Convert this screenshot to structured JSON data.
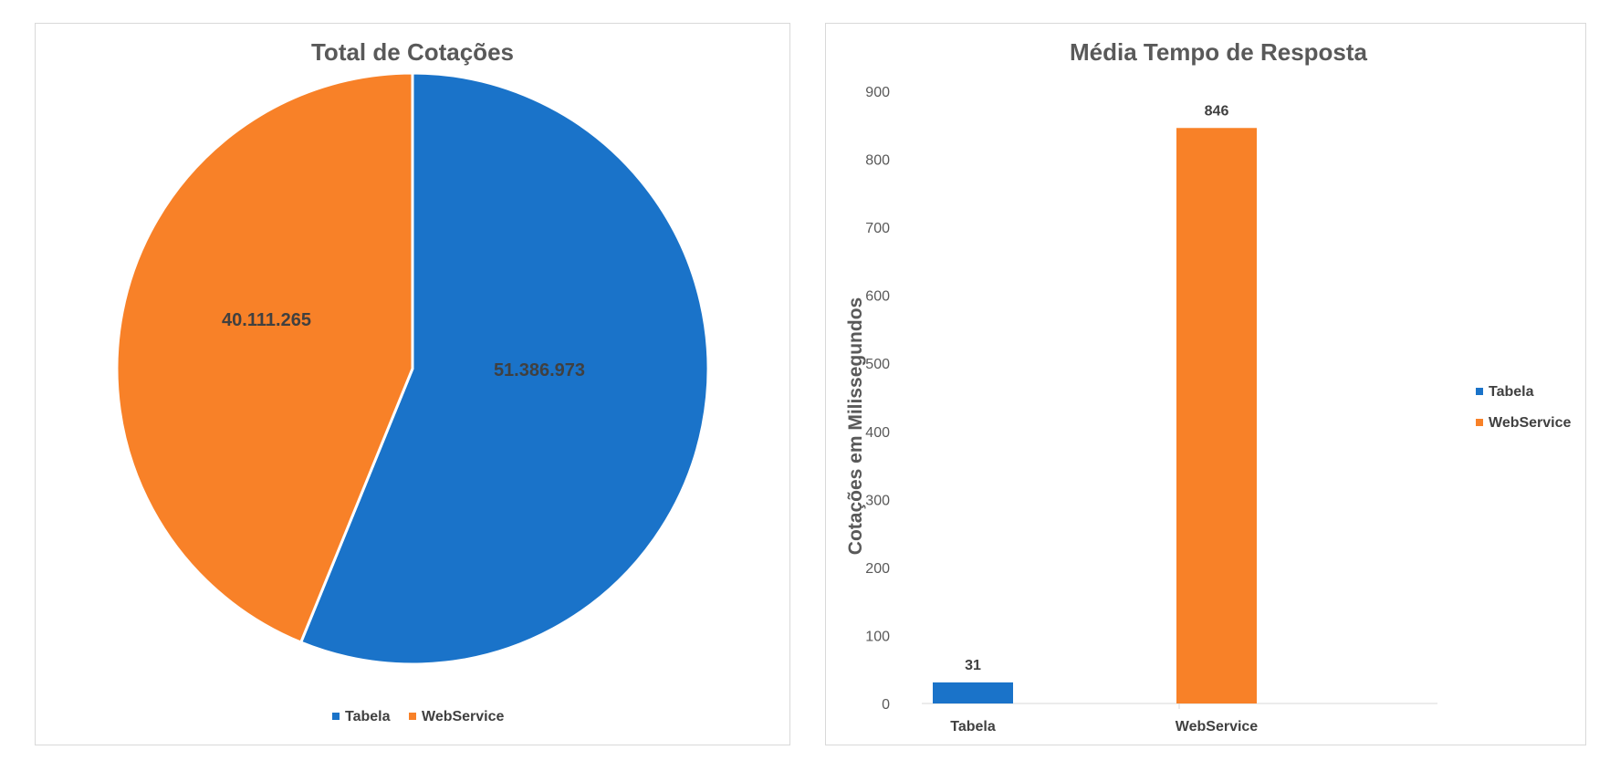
{
  "colors": {
    "tabela": "#1a73c9",
    "webservice": "#f88128",
    "axis": "#d9d9d9"
  },
  "chart_data": [
    {
      "type": "pie",
      "title": "Total de Cotações",
      "categories": [
        "Tabela",
        "WebService"
      ],
      "values": [
        51386973,
        40111265
      ],
      "data_labels": [
        "51.386.973",
        "40.111.265"
      ],
      "legend": {
        "position": "bottom",
        "entries": [
          "Tabela",
          "WebService"
        ]
      }
    },
    {
      "type": "bar",
      "title": "Média Tempo de Resposta",
      "categories": [
        "Tabela",
        "WebService"
      ],
      "values": [
        31,
        846
      ],
      "data_labels": [
        "31",
        "846"
      ],
      "ylabel": "Cotações em Milissegundos",
      "xlabel": "",
      "ylim": [
        0,
        900
      ],
      "yticks": [
        0,
        100,
        200,
        300,
        400,
        500,
        600,
        700,
        800,
        900
      ],
      "grid": false,
      "legend": {
        "position": "right",
        "entries": [
          "Tabela",
          "WebService"
        ]
      }
    }
  ]
}
